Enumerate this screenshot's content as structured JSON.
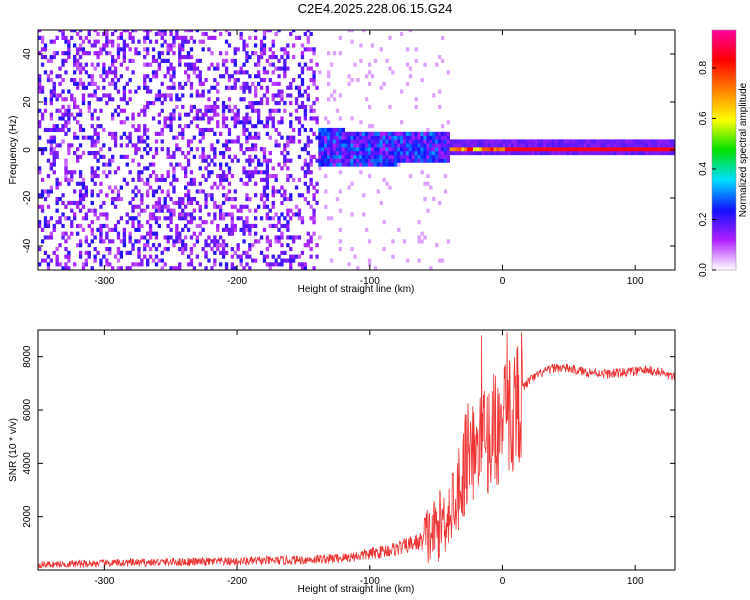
{
  "figure": {
    "title": "C2E4.2025.228.06.15.G24"
  },
  "chart_data": [
    {
      "type": "heatmap",
      "xlabel": "Height of straight line (km)",
      "ylabel": "Frequency (Hz)",
      "xlim": [
        -350,
        130
      ],
      "ylim": [
        -50,
        50
      ],
      "xticks": [
        -300,
        -200,
        -100,
        0,
        100
      ],
      "yticks": [
        -40,
        -20,
        0,
        20,
        40
      ],
      "xtick_labels": [
        "-300",
        "-200",
        "-100",
        "0",
        "100"
      ],
      "ytick_labels": [
        "-40",
        "-20",
        "0",
        "20",
        "40"
      ],
      "colorbar": {
        "label": "Normalized spectral amplitude",
        "range": [
          0,
          0.95
        ],
        "ticks": [
          0.0,
          0.2,
          0.4,
          0.6,
          0.8
        ],
        "tick_labels": [
          "0.0",
          "0.2",
          "0.4",
          "0.6",
          "0.8"
        ],
        "colors": [
          "#ffffff",
          "#b020ff",
          "#1010ff",
          "#00e0ff",
          "#00e000",
          "#ffff00",
          "#ff8000",
          "#ff0000",
          "#ff00a0"
        ]
      },
      "description_regions": {
        "noise_x_range": [
          -350,
          -140
        ],
        "signal_line_frequency": 0,
        "signal_start_x": -140
      }
    },
    {
      "type": "line",
      "xlabel": "Height of straight line (km)",
      "ylabel": "SNR (10 * v/v)",
      "xlim": [
        -350,
        130
      ],
      "ylim": [
        0,
        9000
      ],
      "xticks": [
        -300,
        -200,
        -100,
        0,
        100
      ],
      "yticks": [
        2000,
        4000,
        6000,
        8000
      ],
      "xtick_labels": [
        "-300",
        "-200",
        "-100",
        "0",
        "100"
      ],
      "ytick_labels": [
        "2000",
        "4000",
        "6000",
        "8000"
      ],
      "color": "#ee3333",
      "series": [
        {
          "x": [
            -350,
            -300,
            -250,
            -200,
            -150,
            -120,
            -100,
            -80,
            -60,
            -50,
            -40,
            -35,
            -30,
            -25,
            -20,
            -15,
            -10,
            -5,
            0,
            5,
            10,
            15,
            20,
            30,
            40,
            50,
            60,
            70,
            80,
            90,
            100,
            110,
            120,
            130
          ],
          "values": [
            200,
            250,
            300,
            320,
            380,
            450,
            600,
            800,
            1100,
            1500,
            2200,
            3000,
            3500,
            5000,
            4200,
            4800,
            5000,
            5300,
            5400,
            5800,
            6200,
            6800,
            7100,
            7400,
            7600,
            7550,
            7450,
            7400,
            7350,
            7400,
            7450,
            7500,
            7400,
            7200
          ]
        }
      ]
    }
  ]
}
